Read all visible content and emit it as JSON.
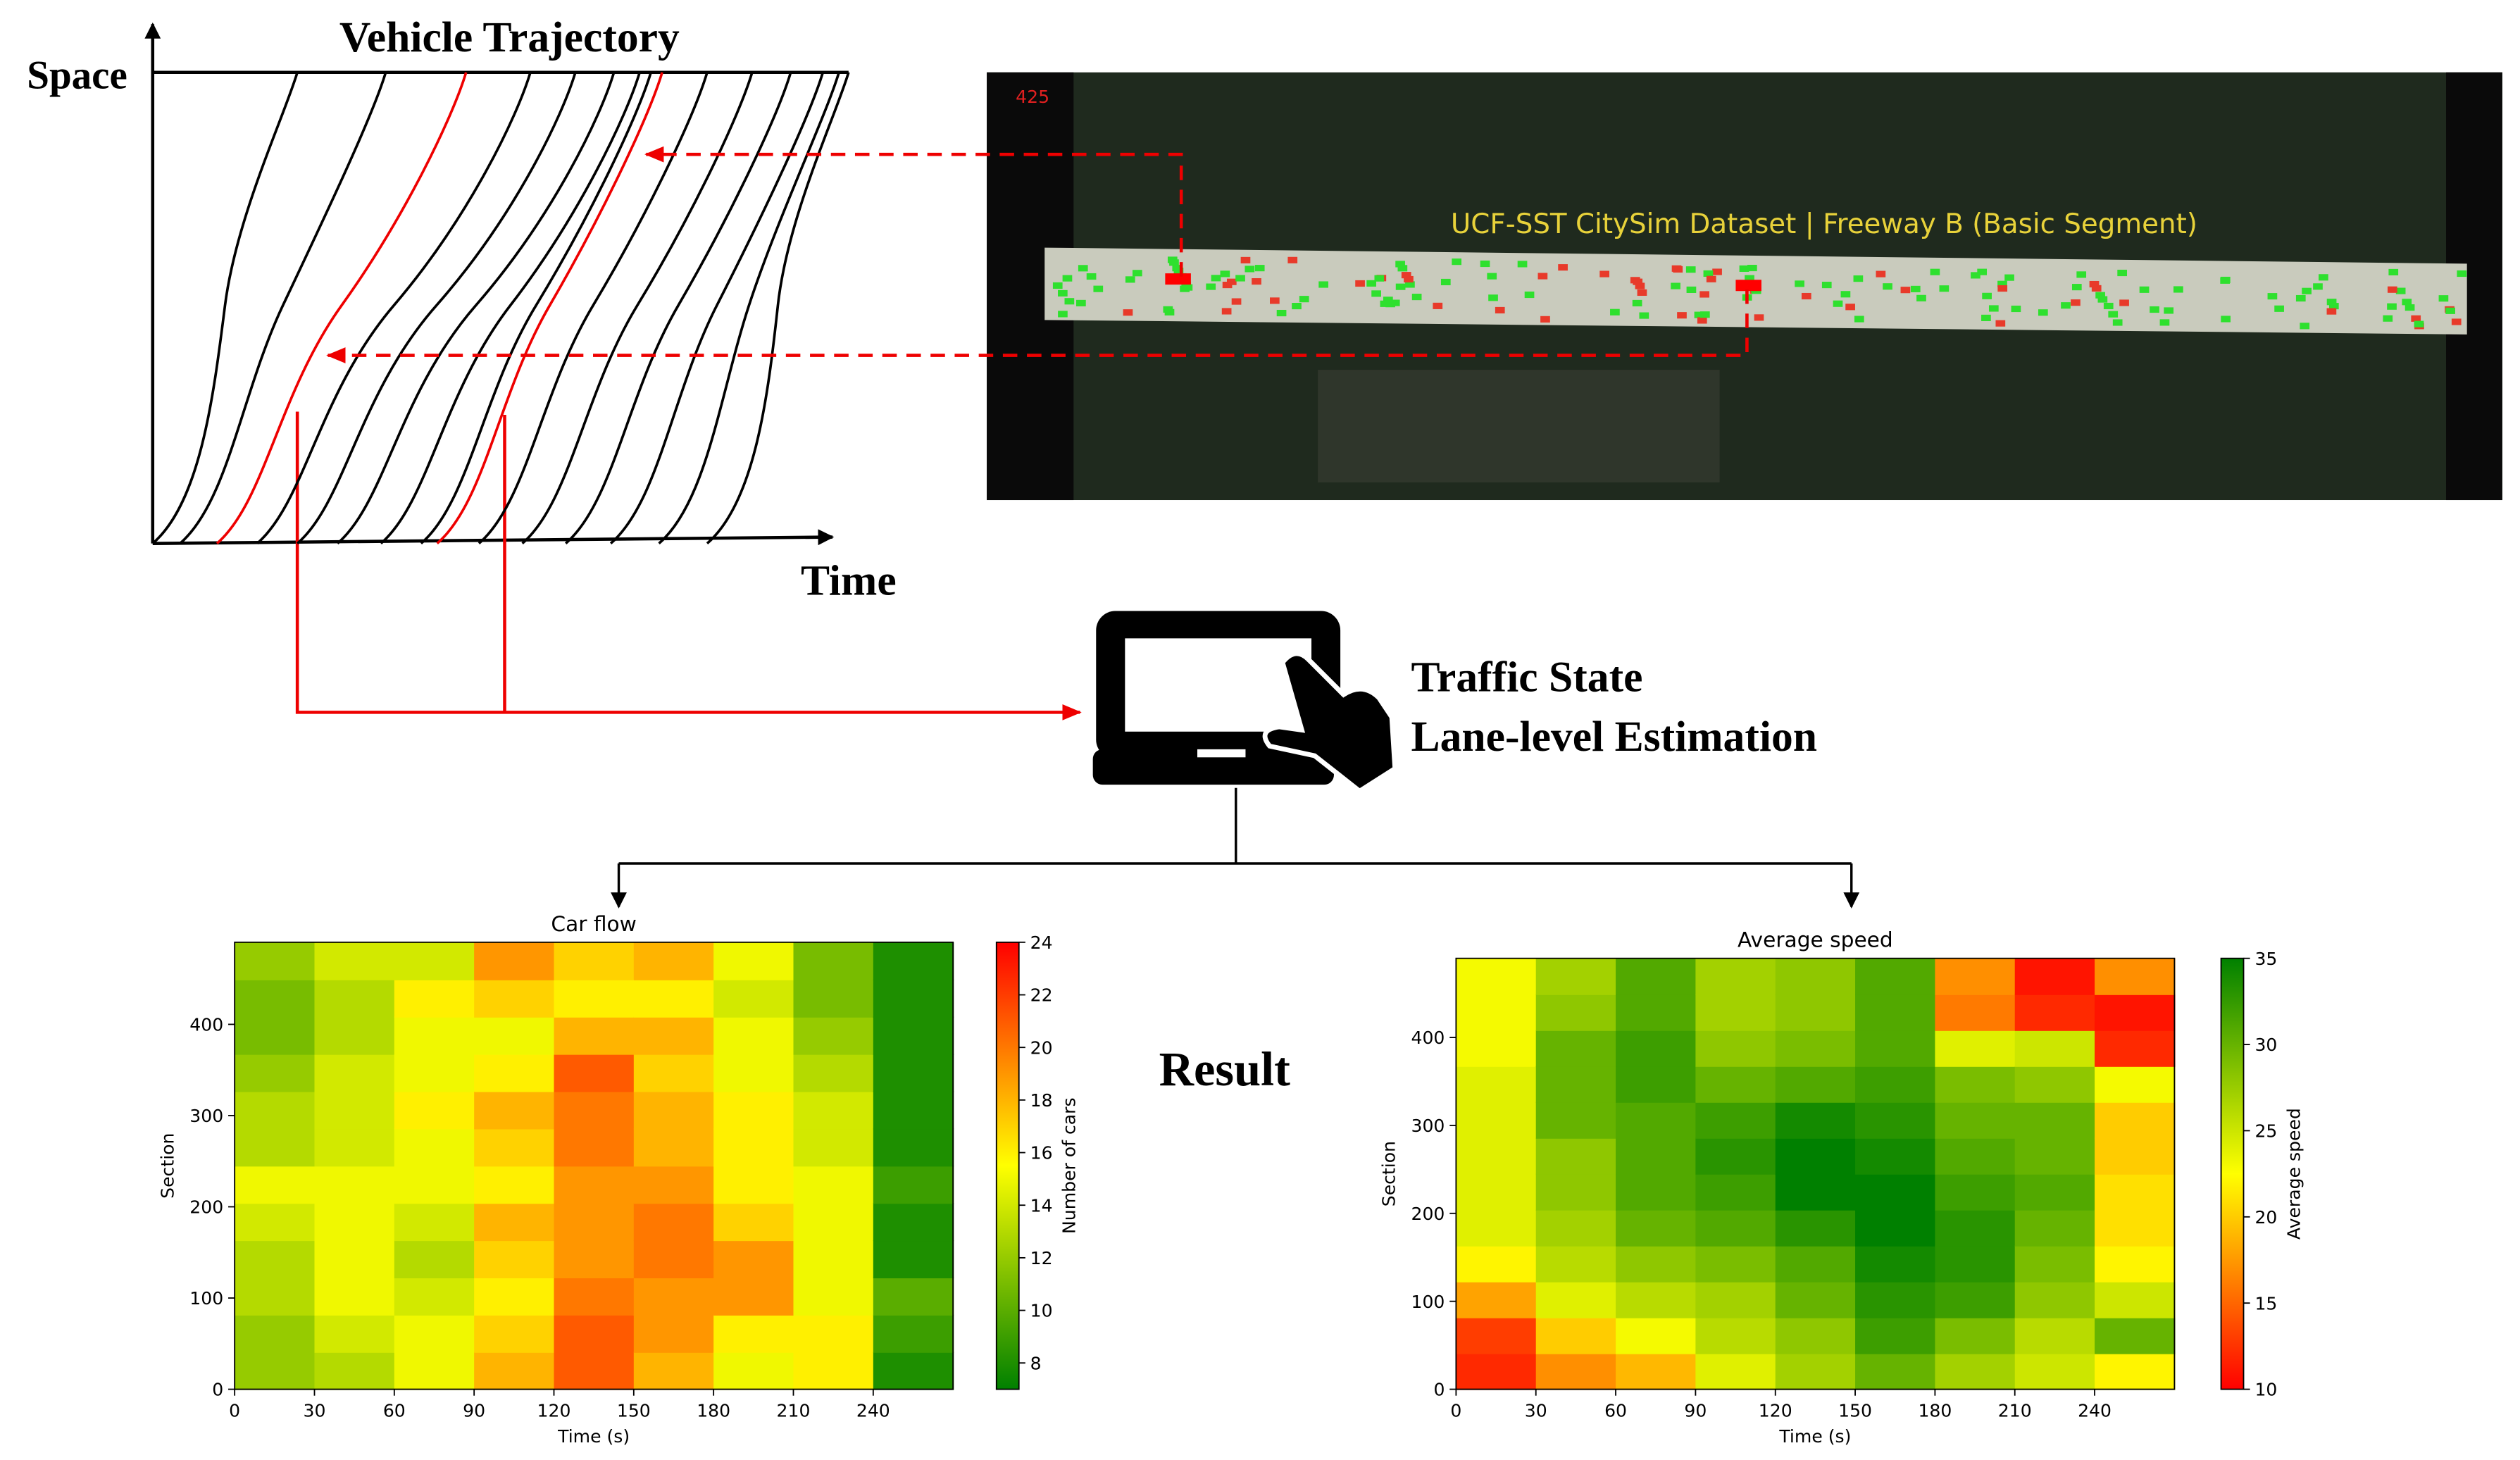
{
  "trajectory": {
    "title": "Vehicle Trajectory",
    "y_label": "Space",
    "x_label": "Time"
  },
  "video": {
    "frame": "425",
    "caption": "UCF-SST CitySim Dataset | Freeway B (Basic Segment)"
  },
  "estimation": {
    "line1": "Traffic State",
    "line2": "Lane-level Estimation"
  },
  "result_label": "Result",
  "heatmaps": [
    {
      "title": "Car flow",
      "x_label": "Time (s)",
      "y_label": "Section",
      "colorbar_label": "Number of cars",
      "xlim": [
        0,
        270
      ],
      "xticks": [
        0,
        30,
        60,
        90,
        120,
        150,
        180,
        210,
        240
      ],
      "ylim": [
        0,
        490
      ],
      "yticks": [
        0,
        100,
        200,
        300,
        400
      ],
      "clim": [
        7,
        24
      ],
      "cticks": [
        8,
        10,
        12,
        14,
        16,
        18,
        20,
        22,
        24
      ],
      "colormap": [
        "#008000",
        "#ffff00",
        "#ff0000"
      ],
      "values": [
        [
          12,
          12,
          13,
          13,
          14,
          15,
          13,
          13,
          12,
          11,
          11,
          12
        ],
        [
          13,
          14,
          15,
          15,
          15,
          15,
          14,
          14,
          14,
          13,
          13,
          14
        ],
        [
          15,
          15,
          14,
          13,
          14,
          15,
          15,
          16,
          15,
          15,
          16,
          14
        ],
        [
          18,
          17,
          16,
          17,
          18,
          16,
          17,
          18,
          16,
          15,
          17,
          19
        ],
        [
          21,
          21,
          20,
          19,
          19,
          19,
          20,
          20,
          21,
          18,
          16,
          17
        ],
        [
          18,
          19,
          19,
          20,
          20,
          19,
          18,
          18,
          17,
          18,
          16,
          18
        ],
        [
          15,
          16,
          19,
          19,
          17,
          16,
          16,
          16,
          15,
          15,
          14,
          15
        ],
        [
          16,
          16,
          15,
          15,
          15,
          15,
          14,
          14,
          13,
          12,
          11,
          11
        ],
        [
          8,
          9,
          10,
          8,
          8,
          9,
          8,
          8,
          8,
          8,
          8,
          8
        ]
      ]
    },
    {
      "title": "Average speed",
      "x_label": "Time (s)",
      "y_label": "Section",
      "colorbar_label": "Average speed",
      "xlim": [
        0,
        270
      ],
      "xticks": [
        0,
        30,
        60,
        90,
        120,
        150,
        180,
        210,
        240
      ],
      "ylim": [
        0,
        490
      ],
      "yticks": [
        0,
        100,
        200,
        300,
        400
      ],
      "clim": [
        10,
        35
      ],
      "cticks": [
        10,
        15,
        20,
        25,
        30,
        35
      ],
      "colormap": [
        "#ff0000",
        "#ffff00",
        "#008000"
      ],
      "values": [
        [
          12,
          13,
          18,
          22,
          24,
          24,
          24,
          24,
          24,
          23,
          23,
          23
        ],
        [
          17,
          20,
          24,
          26,
          27,
          28,
          28,
          30,
          30,
          30,
          28,
          27
        ],
        [
          19,
          23,
          26,
          28,
          30,
          31,
          31,
          31,
          32,
          32,
          31,
          31
        ],
        [
          24,
          26,
          27,
          29,
          31,
          32,
          33,
          32,
          30,
          28,
          27,
          27
        ],
        [
          27,
          28,
          30,
          31,
          33,
          35,
          35,
          34,
          31,
          29,
          28,
          28
        ],
        [
          30,
          32,
          33,
          34,
          35,
          35,
          34,
          33,
          32,
          31,
          31,
          31
        ],
        [
          27,
          29,
          32,
          33,
          33,
          32,
          31,
          30,
          29,
          24,
          16,
          17
        ],
        [
          25,
          26,
          28,
          29,
          30,
          31,
          30,
          30,
          28,
          25,
          12,
          11
        ],
        [
          22,
          30,
          25,
          22,
          21,
          21,
          20,
          20,
          23,
          12,
          11,
          17
        ]
      ]
    }
  ]
}
